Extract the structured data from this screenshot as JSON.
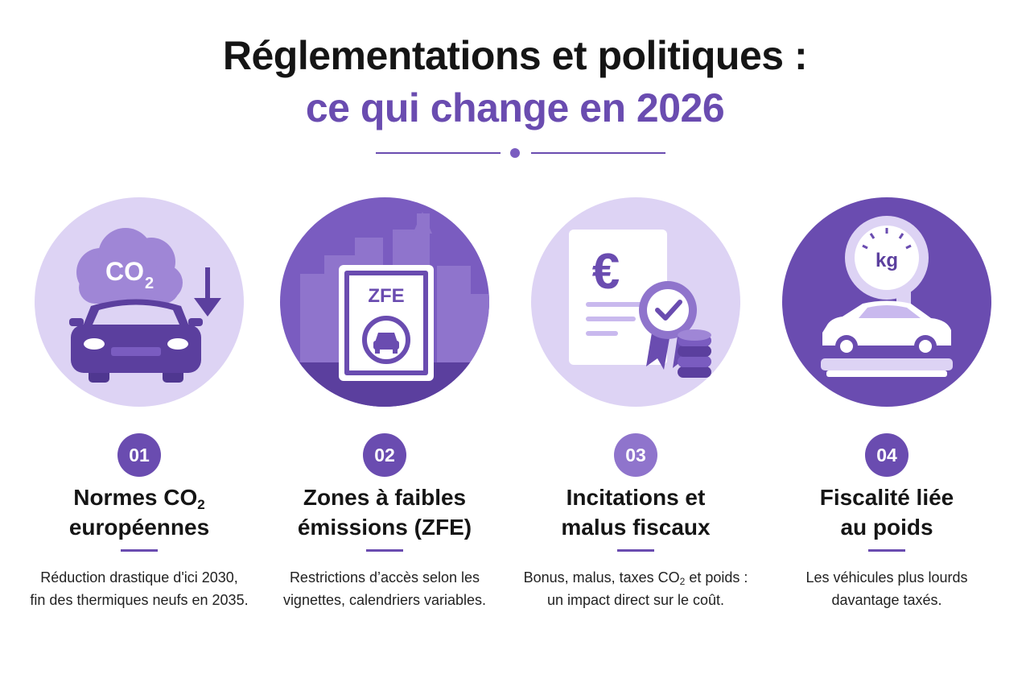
{
  "header": {
    "title_line1": "Réglementations et politiques :",
    "title_line2": "ce qui change en 2026"
  },
  "colors": {
    "accent": "#6a4cb0",
    "accent_dark": "#5b3f9e",
    "circle_light": "#ddd3f4",
    "text_dark": "#151515"
  },
  "cards": [
    {
      "number": "01",
      "icon": "co2-cloud-car-arrow-down-icon",
      "illus_text": "CO",
      "illus_sub": "2",
      "title_a": "Normes CO",
      "title_sub": "2",
      "title_b": "européennes",
      "desc_a": "Réduction drastique d'ici 2030,",
      "desc_b": "fin des thermiques neufs en 2035."
    },
    {
      "number": "02",
      "icon": "zfe-city-sign-icon",
      "illus_text": "ZFE",
      "title_a": "Zones à faibles",
      "title_b": "émissions (ZFE)",
      "desc_a": "Restrictions d’accès selon les",
      "desc_b": "vignettes, calendriers variables."
    },
    {
      "number": "03",
      "icon": "euro-document-badge-coins-icon",
      "illus_text": "€",
      "title_a": "Incitations et",
      "title_b": "malus fiscaux",
      "desc_a_pre": "Bonus, malus, taxes CO",
      "desc_a_sub": "2",
      "desc_a_post": " et poids :",
      "desc_b": "un impact direct sur le coût."
    },
    {
      "number": "04",
      "icon": "weight-scale-car-icon",
      "illus_text": "kg",
      "title_a": "Fiscalité liée",
      "title_b": "au poids",
      "desc_a": "Les véhicules plus lourds",
      "desc_b": "davantage taxés."
    }
  ]
}
